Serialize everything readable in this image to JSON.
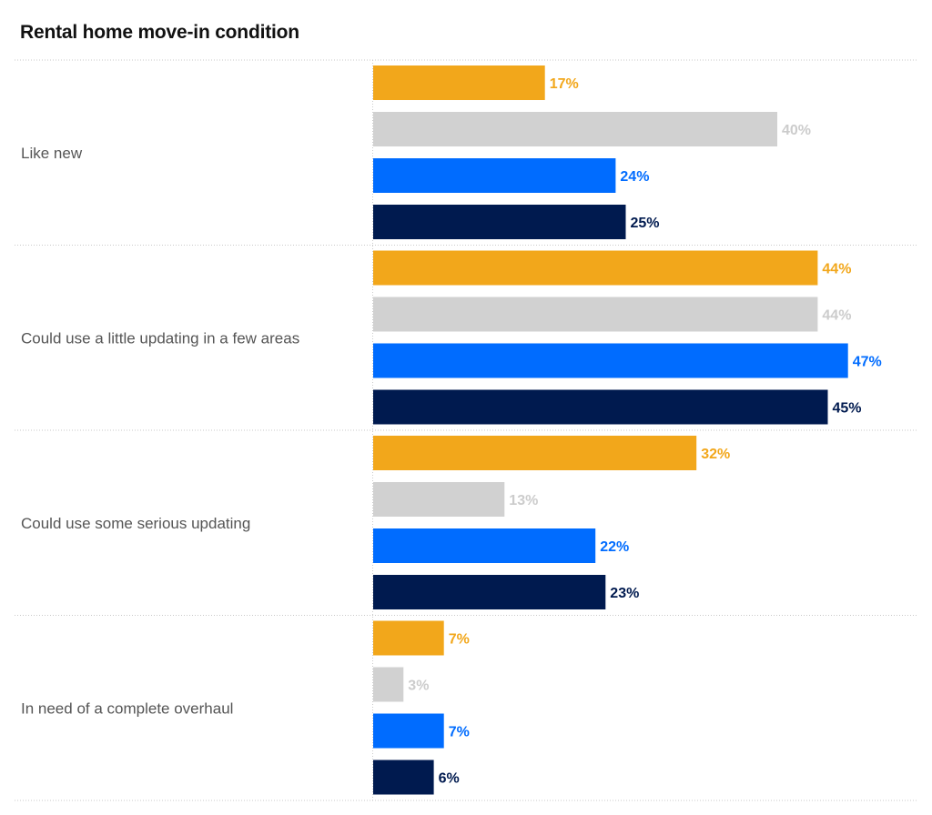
{
  "chart_data": {
    "type": "bar",
    "orientation": "horizontal",
    "title": "Rental home move-in condition",
    "categories": [
      "Like new",
      "Could use a little updating in a few areas",
      "Could use some serious updating",
      "In need of a complete overhaul"
    ],
    "series": [
      {
        "color": "#F2A71B",
        "label_color": "#F2A71B",
        "values": [
          17,
          44,
          32,
          7
        ]
      },
      {
        "color": "#D1D1D1",
        "label_color": "#CCCCCC",
        "values": [
          40,
          44,
          13,
          3
        ]
      },
      {
        "color": "#006CFF",
        "label_color": "#006CFF",
        "values": [
          24,
          47,
          22,
          7
        ]
      },
      {
        "color": "#001A4F",
        "label_color": "#001A4F",
        "values": [
          25,
          45,
          23,
          6
        ]
      }
    ],
    "value_suffix": "%",
    "xlim": [
      0,
      50
    ],
    "grid": false,
    "legend": "none"
  }
}
